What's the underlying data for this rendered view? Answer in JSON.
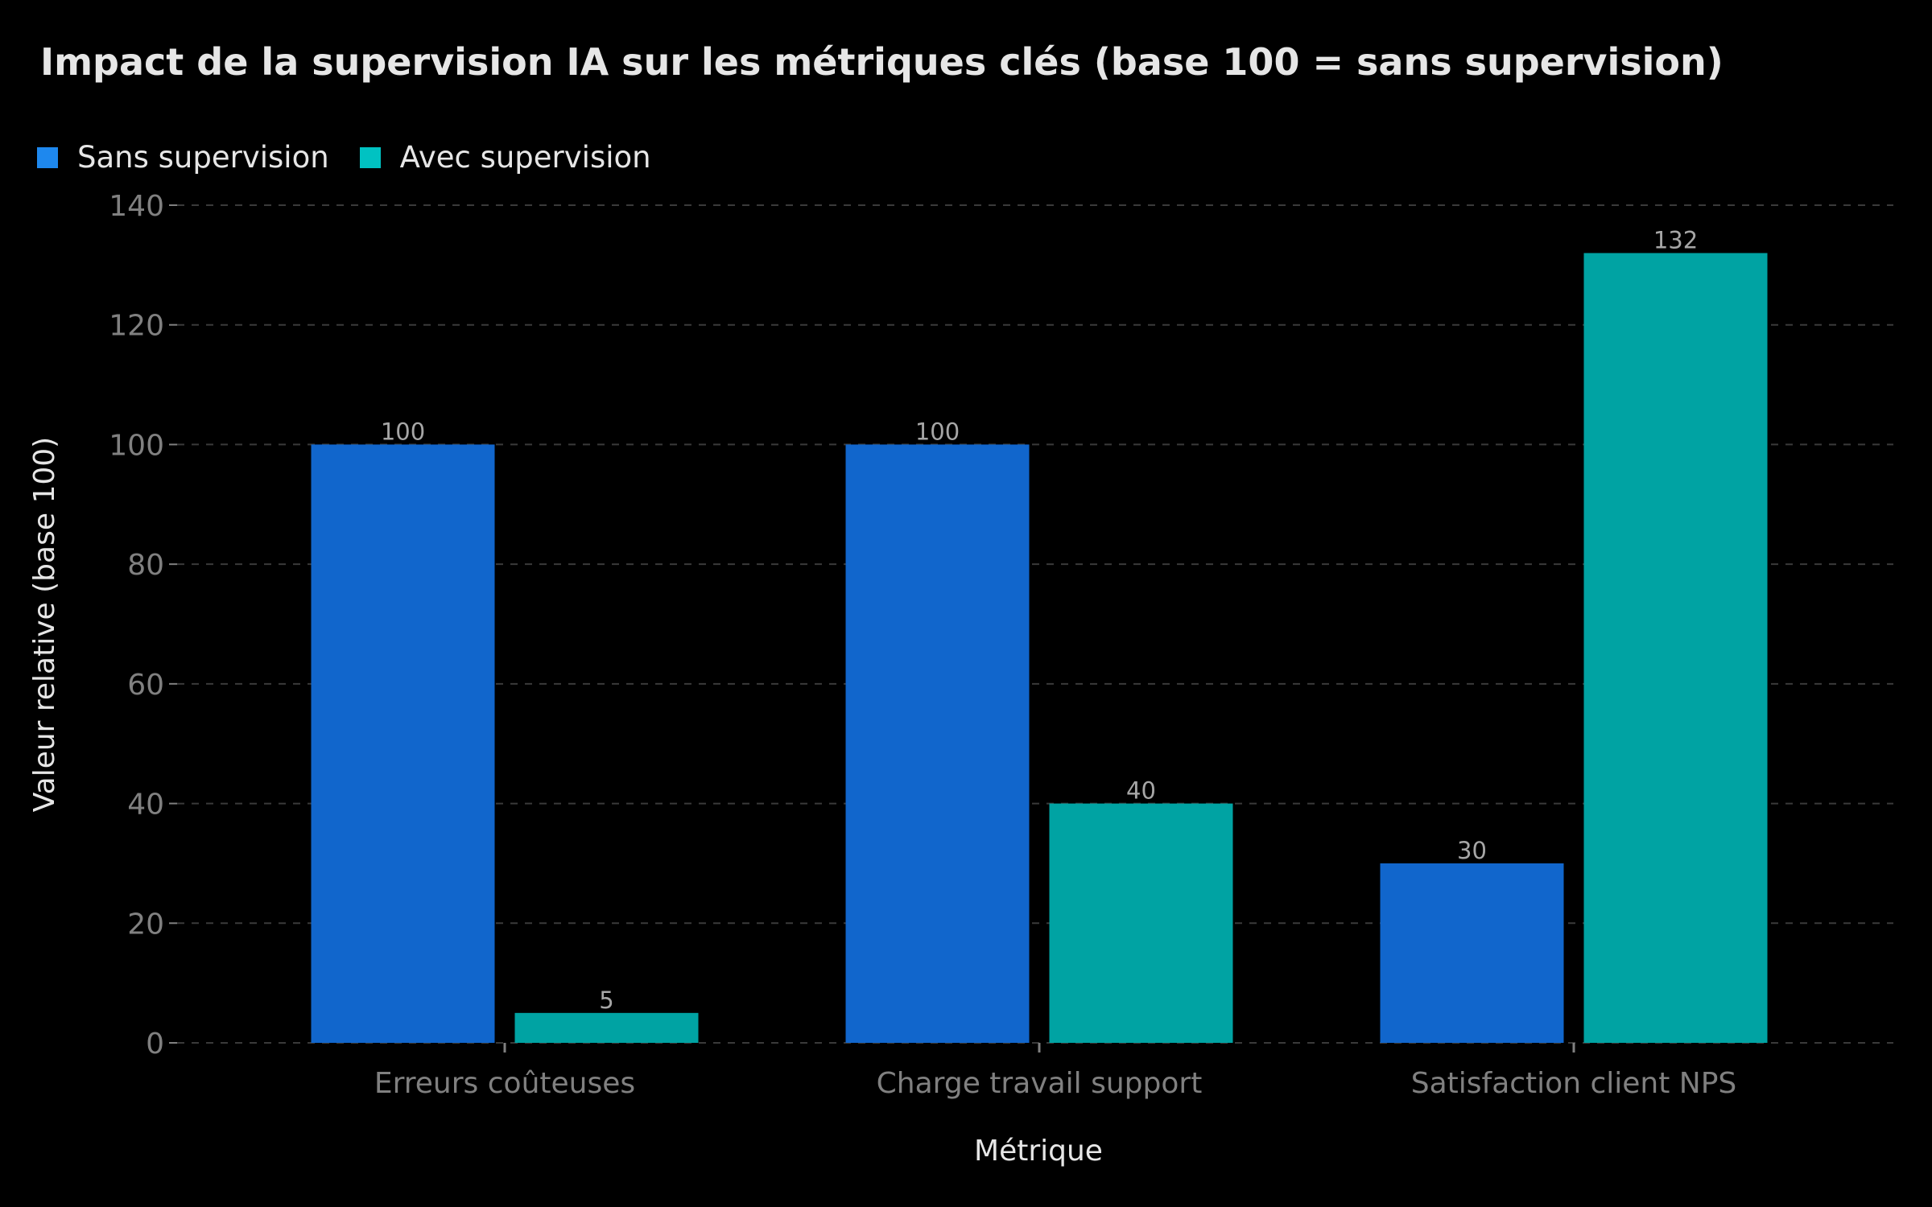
{
  "chart_data": {
    "type": "bar",
    "title": "Impact de la supervision IA sur les métriques clés (base 100 = sans supervision)",
    "xlabel": "Métrique",
    "ylabel": "Valeur relative (base 100)",
    "categories": [
      "Erreurs coûteuses",
      "Charge travail support",
      "Satisfaction client NPS"
    ],
    "series": [
      {
        "name": "Sans supervision",
        "values": [
          100,
          100,
          30
        ],
        "color": "#1166cc"
      },
      {
        "name": "Avec supervision",
        "values": [
          5,
          40,
          132
        ],
        "color": "#00a3a3"
      }
    ],
    "legend_colors": [
      "#1e88ee",
      "#00c2c2"
    ],
    "ylim": [
      0,
      140
    ],
    "yticks": [
      0,
      20,
      40,
      60,
      80,
      100,
      120,
      140
    ],
    "grid": true,
    "legend_position": "top-left",
    "data_labels": true
  },
  "theme": {
    "background": "#000000",
    "title_color": "#e6e6e6",
    "tick_label_color": "#808080",
    "value_label_color": "#a6a6a6",
    "grid_color": "#3a3a3a"
  }
}
